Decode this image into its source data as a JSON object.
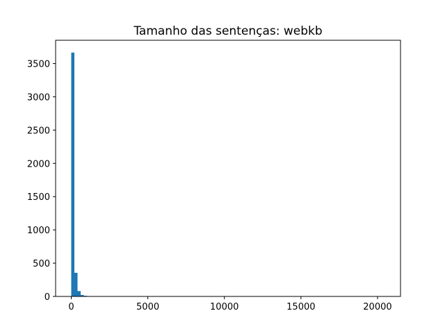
{
  "chart_data": {
    "type": "bar",
    "title": "Tamanho das sentenças: webkb",
    "xlabel": "",
    "ylabel": "",
    "xlim": [
      -1020,
      21500
    ],
    "ylim": [
      0,
      3850
    ],
    "x_ticks": [
      0,
      5000,
      10000,
      15000,
      20000
    ],
    "y_ticks": [
      0,
      500,
      1000,
      1500,
      2000,
      2500,
      3000,
      3500
    ],
    "bin_width": 205,
    "bin_starts": [
      0,
      205,
      410,
      615,
      820,
      1025,
      1230
    ],
    "values": [
      3665,
      355,
      80,
      22,
      10,
      5,
      3
    ],
    "grid": false,
    "legend": "none",
    "bar_color": "#1f77b4"
  }
}
